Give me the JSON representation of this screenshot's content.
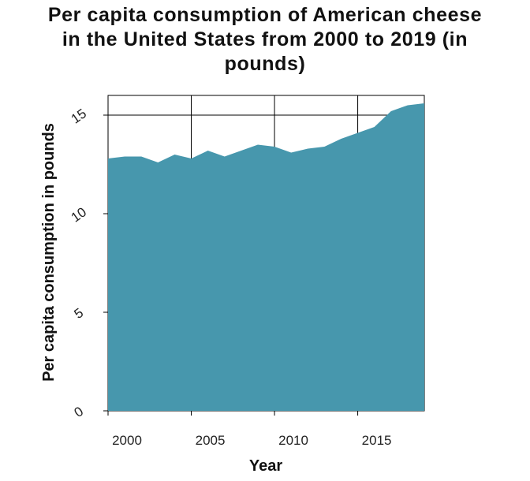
{
  "chart_data": {
    "type": "area",
    "title_lines": [
      "Per capita consumption of American cheese",
      "in the United States from 2000 to 2019 (in",
      "pounds)"
    ],
    "xlabel": "Year",
    "ylabel": "Per capita consumption in pounds",
    "x": [
      2000,
      2001,
      2002,
      2003,
      2004,
      2005,
      2006,
      2007,
      2008,
      2009,
      2010,
      2011,
      2012,
      2013,
      2014,
      2015,
      2016,
      2017,
      2018,
      2019
    ],
    "values": [
      12.8,
      12.9,
      12.9,
      12.6,
      13.0,
      12.8,
      13.2,
      12.9,
      13.2,
      13.5,
      13.4,
      13.1,
      13.3,
      13.4,
      13.8,
      14.1,
      14.4,
      15.2,
      15.5,
      15.6
    ],
    "xlim": [
      2000,
      2019
    ],
    "ylim": [
      0,
      16
    ],
    "x_ticks": [
      2000,
      2005,
      2010,
      2015
    ],
    "x_tick_labels": [
      "2000",
      "2005",
      "2010",
      "2015"
    ],
    "y_ticks": [
      0,
      5,
      10,
      15
    ],
    "y_tick_labels": [
      "0",
      "5",
      "10",
      "15"
    ],
    "grid": true,
    "colors": {
      "fill": "#4797ad",
      "grid": "#000000"
    }
  }
}
